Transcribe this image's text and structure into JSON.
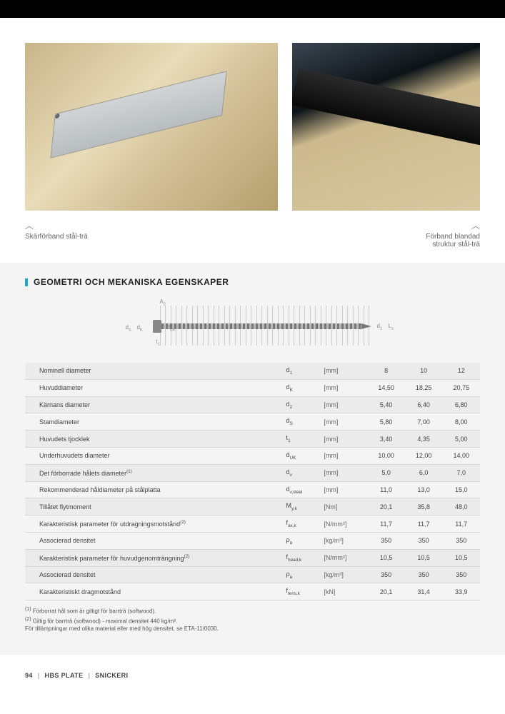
{
  "captions": {
    "left": "Skärförband stål-trä",
    "right_line1": "Förband blandad",
    "right_line2": "struktur stål-trä"
  },
  "section_title": "GEOMETRI OCH MEKANISKA EGENSKAPER",
  "diagram_labels": {
    "ds": "d",
    "ds_sub": "S",
    "dk": "d",
    "dk_sub": "K",
    "duk": "d",
    "duk_sub": "UK",
    "a2": "A",
    "a2_sub": "2",
    "d1": "d",
    "d1_sub": "1",
    "ls": "L",
    "ls_sub": "s",
    "t1": "t",
    "t1_sub": "1"
  },
  "table": {
    "rows": [
      {
        "label": "Nominell diameter",
        "sym": "d",
        "sub": "1",
        "unit": "[mm]",
        "v": [
          "8",
          "10",
          "12"
        ],
        "striped": true
      },
      {
        "label": "Huvuddiameter",
        "sym": "d",
        "sub": "K",
        "unit": "[mm]",
        "v": [
          "14,50",
          "18,25",
          "20,75"
        ]
      },
      {
        "label": "Kärnans diameter",
        "sym": "d",
        "sub": "2",
        "unit": "[mm]",
        "v": [
          "5,40",
          "6,40",
          "6,80"
        ],
        "striped": true
      },
      {
        "label": "Stamdiameter",
        "sym": "d",
        "sub": "S",
        "unit": "[mm]",
        "v": [
          "5,80",
          "7,00",
          "8,00"
        ]
      },
      {
        "label": "Huvudets tjocklek",
        "sym": "t",
        "sub": "1",
        "unit": "[mm]",
        "v": [
          "3,40",
          "4,35",
          "5,00"
        ],
        "striped": true
      },
      {
        "label": "Underhuvudets diameter",
        "sym": "d",
        "sub": "UK",
        "unit": "[mm]",
        "v": [
          "10,00",
          "12,00",
          "14,00"
        ]
      },
      {
        "label": "Det förborrade hålets diameter",
        "sup": "(1)",
        "sym": "d",
        "sub": "v",
        "unit": "[mm]",
        "v": [
          "5,0",
          "6,0",
          "7,0"
        ],
        "striped": true
      },
      {
        "label": "Rekommenderad håldiameter på stålplatta",
        "sym": "d",
        "sub": "v,steel",
        "unit": "[mm]",
        "v": [
          "11,0",
          "13,0",
          "15,0"
        ]
      },
      {
        "label": "Tillåtet flytmoment",
        "sym": "M",
        "sub": "y,k",
        "unit": "[Nm]",
        "v": [
          "20,1",
          "35,8",
          "48,0"
        ],
        "striped": true
      },
      {
        "label": "Karakteristisk parameter för utdragningsmotstånd",
        "sup": "(2)",
        "sym": "f",
        "sub": "ax,k",
        "unit": "[N/mm²]",
        "v": [
          "11,7",
          "11,7",
          "11,7"
        ]
      },
      {
        "label": "Associerad densitet",
        "sym": "ρ",
        "sub": "a",
        "unit": "[kg/m³]",
        "v": [
          "350",
          "350",
          "350"
        ]
      },
      {
        "label": "Karakteristisk parameter för huvudgenomträngning",
        "sup": "(2)",
        "sym": "f",
        "sub": "head,k",
        "unit": "[N/mm²]",
        "v": [
          "10,5",
          "10,5",
          "10,5"
        ],
        "striped": true
      },
      {
        "label": "Associerad densitet",
        "sym": "ρ",
        "sub": "a",
        "unit": "[kg/m³]",
        "v": [
          "350",
          "350",
          "350"
        ],
        "striped": true
      },
      {
        "label": "Karakteristiskt dragmotstånd",
        "sym": "f",
        "sub": "tens,k",
        "unit": "[kN]",
        "v": [
          "20,1",
          "31,4",
          "33,9"
        ]
      }
    ]
  },
  "footnotes": {
    "n1_sup": "(1)",
    "n1": "Förborrat hål som är giltigt för barrträ (softwood).",
    "n2_sup": "(2)",
    "n2": "Giltig för barrträ (softwood) - maximal densitet 440 kg/m³.",
    "n3": "För tillämpningar med olika material eller med hög densitet, se ETA-11/0030."
  },
  "footer": {
    "page": "94",
    "brand": "HBS PLATE",
    "cat": "SNICKERI"
  },
  "colors": {
    "accent": "#1aa9c9",
    "stripe": "#ebebeb",
    "gray_bg": "#f4f4f4"
  }
}
